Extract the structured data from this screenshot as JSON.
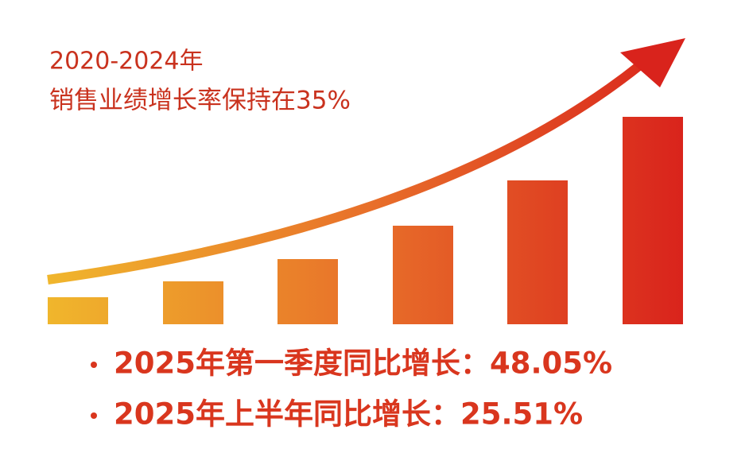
{
  "header": {
    "period": "2020-2024年",
    "subtitle": "销售业绩增长率保持在35%"
  },
  "highlights": [
    "2025年第一季度同比增长：48.05%",
    "2025年上半年同比增长：25.51%"
  ]
}
